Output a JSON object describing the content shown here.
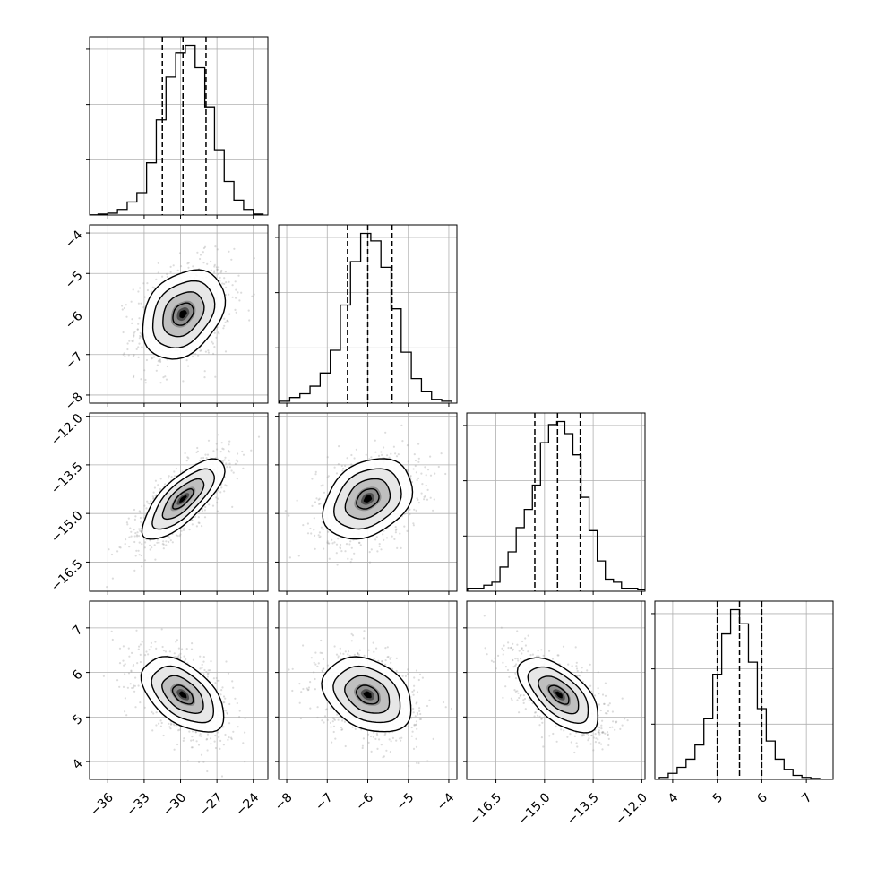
{
  "chart_data": {
    "type": "corner",
    "grid": true,
    "parameters": [
      {
        "id": "p0",
        "range": [
          -37.5,
          -22.8
        ],
        "xticks": [
          -36,
          -33,
          -30,
          -27,
          -24
        ],
        "xtick_labels": [
          "−36",
          "−33",
          "−30",
          "−27",
          "−24"
        ],
        "quantiles": [
          -31.5,
          -29.8,
          -27.9
        ],
        "hist_bins": [
          -37.2,
          -36.4,
          -35.6,
          -34.8,
          -34.0,
          -33.2,
          -32.4,
          -31.6,
          -30.8,
          -30.0,
          -29.2,
          -28.4,
          -27.6,
          -26.8,
          -26.0,
          -25.2,
          -24.4,
          -23.6
        ],
        "hist_values": [
          0.1,
          0.5,
          1,
          3,
          7,
          12,
          28,
          51,
          74,
          87,
          91,
          79,
          58,
          35,
          18,
          8,
          3,
          0.5
        ]
      },
      {
        "id": "p1",
        "range": [
          -8.2,
          -3.8
        ],
        "xticks": [
          -8,
          -7,
          -6,
          -5,
          -4
        ],
        "xtick_labels": [
          "−8",
          "−7",
          "−6",
          "−5",
          "−4"
        ],
        "yticks": [
          -4,
          -5,
          -6,
          -7,
          -8
        ],
        "ytick_labels": [
          "−4",
          "−5",
          "−6",
          "−7",
          "−8"
        ],
        "quantiles": [
          -6.5,
          -6.0,
          -5.4
        ],
        "hist_bins": [
          -8.05,
          -7.8,
          -7.55,
          -7.3,
          -7.05,
          -6.8,
          -6.55,
          -6.3,
          -6.05,
          -5.8,
          -5.55,
          -5.3,
          -5.05,
          -4.8,
          -4.55,
          -4.3,
          -4.05
        ],
        "hist_values": [
          1,
          3,
          5,
          9,
          16,
          28,
          52,
          75,
          90,
          86,
          72,
          50,
          27,
          13,
          6,
          2,
          1
        ]
      },
      {
        "id": "p2",
        "range": [
          -17.4,
          -11.9
        ],
        "xticks": [
          -16.5,
          -15.0,
          -13.5,
          -12.0
        ],
        "xtick_labels": [
          "−16.5",
          "−15.0",
          "−13.5",
          "−12.0"
        ],
        "yticks": [
          -12.0,
          -13.5,
          -15.0,
          -16.5
        ],
        "ytick_labels": [
          "−12.0",
          "−13.5",
          "−15.0",
          "−16.5"
        ],
        "quantiles": [
          -15.3,
          -14.6,
          -13.9
        ],
        "hist_bins": [
          -17.25,
          -17.0,
          -16.75,
          -16.5,
          -16.25,
          -16.0,
          -15.75,
          -15.5,
          -15.25,
          -15.0,
          -14.75,
          -14.5,
          -14.25,
          -14.0,
          -13.75,
          -13.5,
          -13.25,
          -13.0,
          -12.75,
          -12.5,
          -12.25,
          -12.0
        ],
        "hist_values": [
          1,
          1,
          2,
          3,
          8,
          13,
          21,
          27,
          35,
          49,
          55,
          56,
          52,
          45,
          31,
          20,
          10,
          4,
          3,
          1,
          1,
          0.5
        ]
      },
      {
        "id": "p3",
        "range": [
          3.6,
          7.6
        ],
        "xticks": [
          4,
          5,
          6,
          7
        ],
        "xtick_labels": [
          "4",
          "5",
          "6",
          "7"
        ],
        "yticks": [
          7,
          6,
          5,
          4
        ],
        "ytick_labels": [
          "7",
          "6",
          "5",
          "4"
        ],
        "quantiles": [
          5.0,
          5.5,
          6.0
        ],
        "hist_bins": [
          3.8,
          4.0,
          4.2,
          4.4,
          4.6,
          4.8,
          5.0,
          5.2,
          5.4,
          5.6,
          5.8,
          6.0,
          6.2,
          6.4,
          6.6,
          6.8,
          7.0,
          7.2
        ],
        "hist_values": [
          1,
          3,
          6,
          10,
          17,
          30,
          52,
          72,
          84,
          77,
          58,
          35,
          19,
          10,
          5,
          2,
          1,
          0.5
        ]
      }
    ],
    "pairs": [
      {
        "x": "p0",
        "y": "p1",
        "center": [
          -29.8,
          -6.0
        ],
        "sigma": [
          1.7,
          0.55
        ],
        "rho": 0.3
      },
      {
        "x": "p0",
        "y": "p2",
        "center": [
          -29.8,
          -14.55
        ],
        "sigma": [
          1.7,
          0.62
        ],
        "rho": 0.75
      },
      {
        "x": "p1",
        "y": "p2",
        "center": [
          -6.0,
          -14.55
        ],
        "sigma": [
          0.55,
          0.62
        ],
        "rho": 0.3
      },
      {
        "x": "p0",
        "y": "p3",
        "center": [
          -29.8,
          5.5
        ],
        "sigma": [
          1.7,
          0.42
        ],
        "rho": -0.5
      },
      {
        "x": "p1",
        "y": "p3",
        "center": [
          -6.0,
          5.5
        ],
        "sigma": [
          0.55,
          0.42
        ],
        "rho": -0.3
      },
      {
        "x": "p2",
        "y": "p3",
        "center": [
          -14.55,
          5.5
        ],
        "sigma": [
          0.62,
          0.42
        ],
        "rho": -0.6
      }
    ],
    "contour_levels_sigma": [
      0.5,
      1.0,
      1.5,
      2.0
    ]
  }
}
